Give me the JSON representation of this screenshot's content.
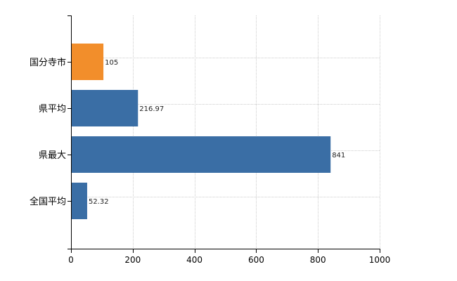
{
  "chart_data": {
    "type": "bar",
    "orientation": "horizontal",
    "categories": [
      "国分寺市",
      "県平均",
      "県最大",
      "全国平均"
    ],
    "values": [
      105,
      216.97,
      841,
      52.32
    ],
    "data_labels": [
      "105",
      "216.97",
      "841",
      "52.32"
    ],
    "bar_colors": [
      "#f28e2b",
      "#3a6ea5",
      "#3a6ea5",
      "#3a6ea5"
    ],
    "title": "",
    "xlabel": "",
    "ylabel": "",
    "xlim": [
      0,
      1000
    ],
    "x_ticks": [
      0,
      200,
      400,
      600,
      800,
      1000
    ],
    "grid": true,
    "legend": "none"
  }
}
